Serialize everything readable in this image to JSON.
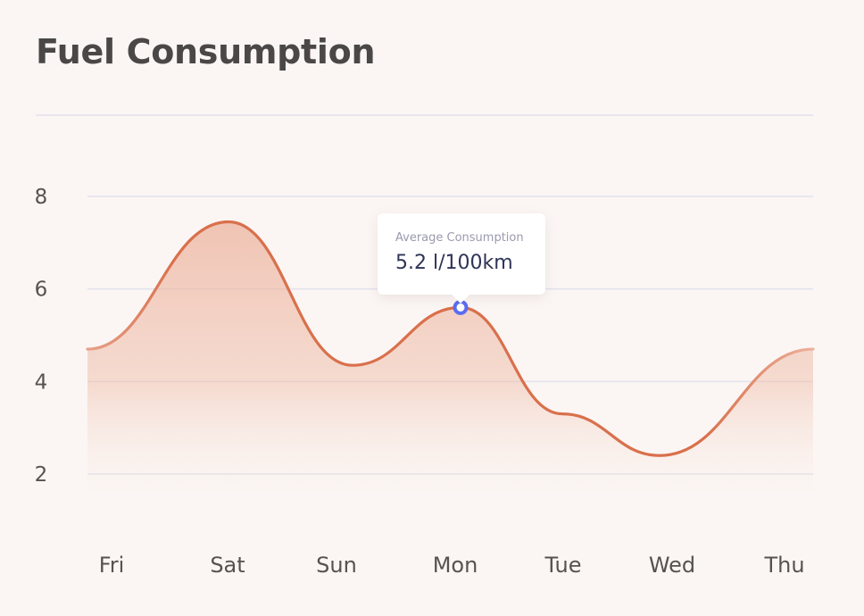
{
  "header": {
    "title": "Fuel Consumption"
  },
  "tooltip": {
    "label": "Average Consumption",
    "value": "5.2 l/100km"
  },
  "colors": {
    "line": "#d9704c",
    "area": "#e9a58c",
    "marker": "#5b6cf0",
    "grid": "#e3e1ec",
    "background": "#fbf6f4"
  },
  "chart_data": {
    "type": "area",
    "categories": [
      "Fri",
      "Sat",
      "Sun",
      "Mon",
      "Tue",
      "Wed",
      "Thu"
    ],
    "series": [
      {
        "values": [
          4.7,
          7.45,
          4.35,
          5.6,
          3.3,
          2.4,
          4.7
        ]
      }
    ],
    "highlight": {
      "category": "Mon",
      "value": 5.6
    },
    "yticks": [
      2,
      4,
      6,
      8
    ],
    "ylim": [
      1,
      8
    ],
    "grid": true,
    "legend": "none"
  }
}
